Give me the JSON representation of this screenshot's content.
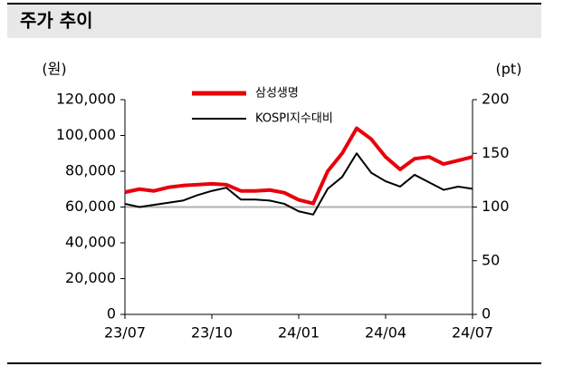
{
  "header": {
    "title": "주가 추이"
  },
  "chart_data": {
    "type": "line",
    "y_label": "(원)",
    "y2_label": "(pt)",
    "x": [
      0,
      0.5,
      1,
      1.5,
      2,
      2.5,
      3,
      3.5,
      4,
      4.5,
      5,
      5.5,
      6,
      6.5,
      7,
      7.5,
      8,
      8.5,
      9,
      9.5,
      10,
      10.5,
      11,
      11.5,
      12
    ],
    "xlim": [
      0,
      12
    ],
    "xticks": [
      {
        "value": 0,
        "label": "23/07"
      },
      {
        "value": 3,
        "label": "23/10"
      },
      {
        "value": 6,
        "label": "24/01"
      },
      {
        "value": 9,
        "label": "24/04"
      },
      {
        "value": 12,
        "label": "24/07"
      }
    ],
    "ylim": [
      0,
      120000
    ],
    "yticks": [
      {
        "value": 0,
        "label": "0"
      },
      {
        "value": 20000,
        "label": "20,000"
      },
      {
        "value": 40000,
        "label": "40,000"
      },
      {
        "value": 60000,
        "label": "60,000"
      },
      {
        "value": 80000,
        "label": "80,000"
      },
      {
        "value": 100000,
        "label": "100,000"
      },
      {
        "value": 120000,
        "label": "120,000"
      }
    ],
    "y2lim": [
      0,
      200
    ],
    "y2ticks": [
      0,
      50,
      100,
      150,
      200
    ],
    "reference_line": 60000,
    "series": [
      {
        "name": "삼성생명",
        "color": "#e8000b",
        "values": [
          68300,
          70000,
          69000,
          71000,
          72000,
          72500,
          73000,
          72500,
          69000,
          69000,
          69500,
          68000,
          64000,
          62000,
          80000,
          90000,
          104000,
          98000,
          88000,
          81000,
          87000,
          88000,
          84000,
          86000,
          88000
        ]
      },
      {
        "name": "KOSPI지수대비",
        "color": "#000000",
        "axis": "y2",
        "values": [
          103,
          100,
          102,
          104,
          106,
          111,
          115,
          118,
          107,
          107,
          106,
          103,
          96,
          93,
          117,
          128,
          150,
          132,
          124,
          119,
          130,
          123,
          116,
          119,
          117
        ]
      }
    ]
  }
}
